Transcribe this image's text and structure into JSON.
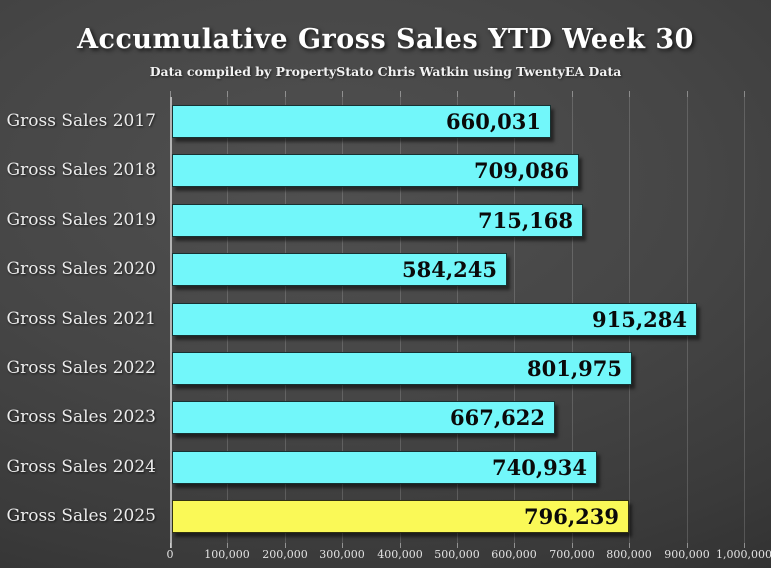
{
  "page": {
    "background": {
      "center": "#505050",
      "edge": "#2b2b2b"
    }
  },
  "chart_data": {
    "type": "bar",
    "orientation": "horizontal",
    "title": "Accumulative Gross Sales YTD Week 30",
    "subtitle": "Data compiled by PropertyStato Chris Watkin using TwentyEA Data",
    "categories": [
      "Gross Sales 2017",
      "Gross Sales 2018",
      "Gross Sales 2019",
      "Gross Sales 2020",
      "Gross Sales 2021",
      "Gross Sales 2022",
      "Gross Sales 2023",
      "Gross Sales 2024",
      "Gross Sales 2025"
    ],
    "values": [
      660031,
      709086,
      715168,
      584245,
      915284,
      801975,
      667622,
      740934,
      796239
    ],
    "value_labels": [
      "660,031",
      "709,086",
      "715,168",
      "584,245",
      "915,284",
      "801,975",
      "667,622",
      "740,934",
      "796,239"
    ],
    "bar_color": "#72F7FA",
    "highlight_color": "#FAF957",
    "highlight_index": 8,
    "value_text_color": "#0a0a0a",
    "xlim": [
      0,
      1000000
    ],
    "x_tick_labels": [
      "0",
      "100,000",
      "200,000",
      "300,000",
      "400,000",
      "500,000",
      "600,000",
      "700,000",
      "800,000",
      "900,000",
      "1,000,000"
    ],
    "grid": true,
    "legend": false
  }
}
